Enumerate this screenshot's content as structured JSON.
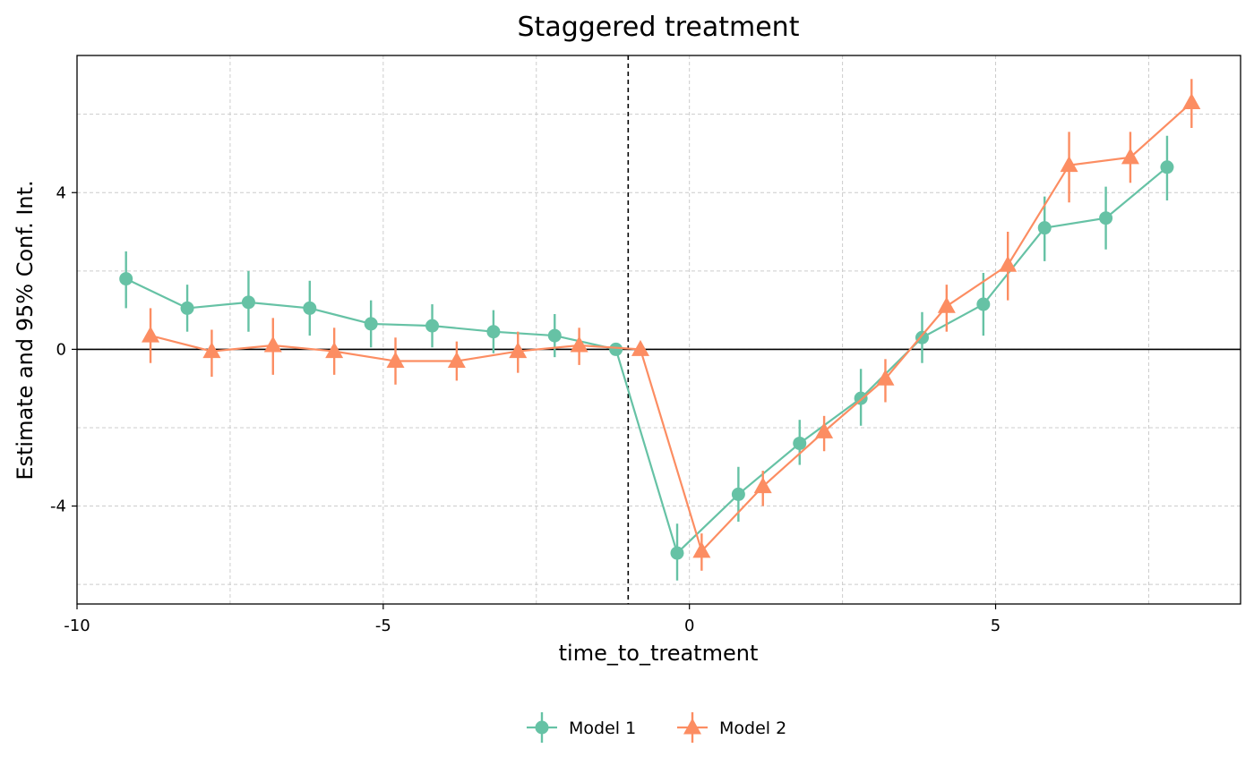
{
  "chart_data": {
    "type": "line",
    "title": "Staggered treatment",
    "xlabel": "time_to_treatment",
    "ylabel": "Estimate and 95% Conf. Int.",
    "xlim": [
      -10,
      9
    ],
    "ylim": [
      -6.5,
      7.5
    ],
    "xticks": [
      -10,
      -5,
      0,
      5
    ],
    "yticks": [
      -4,
      0,
      4
    ],
    "xtick_labels": [
      "-10",
      "-5",
      "0",
      "5"
    ],
    "ytick_labels": [
      "-4",
      "0",
      "4"
    ],
    "x_minor_grid": [
      -7.5,
      -2.5,
      2.5,
      7.5
    ],
    "y_minor_grid": [
      -6,
      -2,
      2,
      6
    ],
    "grid": true,
    "hline": 0,
    "vline": -1,
    "legend_position": "bottom",
    "series": [
      {
        "name": "Model 1",
        "marker": "circle",
        "color": "#66c2a5",
        "points": [
          {
            "x": -9,
            "y": 1.8,
            "lo": 1.05,
            "hi": 2.5
          },
          {
            "x": -8,
            "y": 1.05,
            "lo": 0.45,
            "hi": 1.65
          },
          {
            "x": -7,
            "y": 1.2,
            "lo": 0.45,
            "hi": 2.0
          },
          {
            "x": -6,
            "y": 1.05,
            "lo": 0.35,
            "hi": 1.75
          },
          {
            "x": -5,
            "y": 0.65,
            "lo": 0.05,
            "hi": 1.25
          },
          {
            "x": -4,
            "y": 0.6,
            "lo": 0.05,
            "hi": 1.15
          },
          {
            "x": -3,
            "y": 0.45,
            "lo": -0.1,
            "hi": 1.0
          },
          {
            "x": -2,
            "y": 0.35,
            "lo": -0.2,
            "hi": 0.9
          },
          {
            "x": -1,
            "y": 0.0,
            "lo": 0.0,
            "hi": 0.0
          },
          {
            "x": 0,
            "y": -5.2,
            "lo": -5.9,
            "hi": -4.45
          },
          {
            "x": 1,
            "y": -3.7,
            "lo": -4.4,
            "hi": -3.0
          },
          {
            "x": 2,
            "y": -2.4,
            "lo": -2.95,
            "hi": -1.8
          },
          {
            "x": 3,
            "y": -1.25,
            "lo": -1.95,
            "hi": -0.5
          },
          {
            "x": 4,
            "y": 0.3,
            "lo": -0.35,
            "hi": 0.95
          },
          {
            "x": 5,
            "y": 1.15,
            "lo": 0.35,
            "hi": 1.95
          },
          {
            "x": 6,
            "y": 3.1,
            "lo": 2.25,
            "hi": 3.9
          },
          {
            "x": 7,
            "y": 3.35,
            "lo": 2.55,
            "hi": 4.15
          },
          {
            "x": 8,
            "y": 4.65,
            "lo": 3.8,
            "hi": 5.45
          }
        ]
      },
      {
        "name": "Model 2",
        "marker": "triangle",
        "color": "#fc8d62",
        "points": [
          {
            "x": -9,
            "y": 0.35,
            "lo": -0.35,
            "hi": 1.05
          },
          {
            "x": -8,
            "y": -0.05,
            "lo": -0.7,
            "hi": 0.5
          },
          {
            "x": -7,
            "y": 0.1,
            "lo": -0.65,
            "hi": 0.8
          },
          {
            "x": -6,
            "y": -0.05,
            "lo": -0.65,
            "hi": 0.55
          },
          {
            "x": -5,
            "y": -0.3,
            "lo": -0.9,
            "hi": 0.3
          },
          {
            "x": -4,
            "y": -0.3,
            "lo": -0.8,
            "hi": 0.2
          },
          {
            "x": -3,
            "y": -0.05,
            "lo": -0.6,
            "hi": 0.45
          },
          {
            "x": -2,
            "y": 0.1,
            "lo": -0.4,
            "hi": 0.55
          },
          {
            "x": -1,
            "y": 0.0,
            "lo": 0.0,
            "hi": 0.0
          },
          {
            "x": 0,
            "y": -5.15,
            "lo": -5.65,
            "hi": -4.7
          },
          {
            "x": 1,
            "y": -3.5,
            "lo": -4.0,
            "hi": -3.1
          },
          {
            "x": 2,
            "y": -2.1,
            "lo": -2.6,
            "hi": -1.7
          },
          {
            "x": 3,
            "y": -0.75,
            "lo": -1.35,
            "hi": -0.25
          },
          {
            "x": 4,
            "y": 1.1,
            "lo": 0.45,
            "hi": 1.65
          },
          {
            "x": 5,
            "y": 2.15,
            "lo": 1.25,
            "hi": 3.0
          },
          {
            "x": 6,
            "y": 4.7,
            "lo": 3.75,
            "hi": 5.55
          },
          {
            "x": 7,
            "y": 4.9,
            "lo": 4.25,
            "hi": 5.55
          },
          {
            "x": 8,
            "y": 6.3,
            "lo": 5.65,
            "hi": 6.9
          }
        ]
      }
    ]
  }
}
